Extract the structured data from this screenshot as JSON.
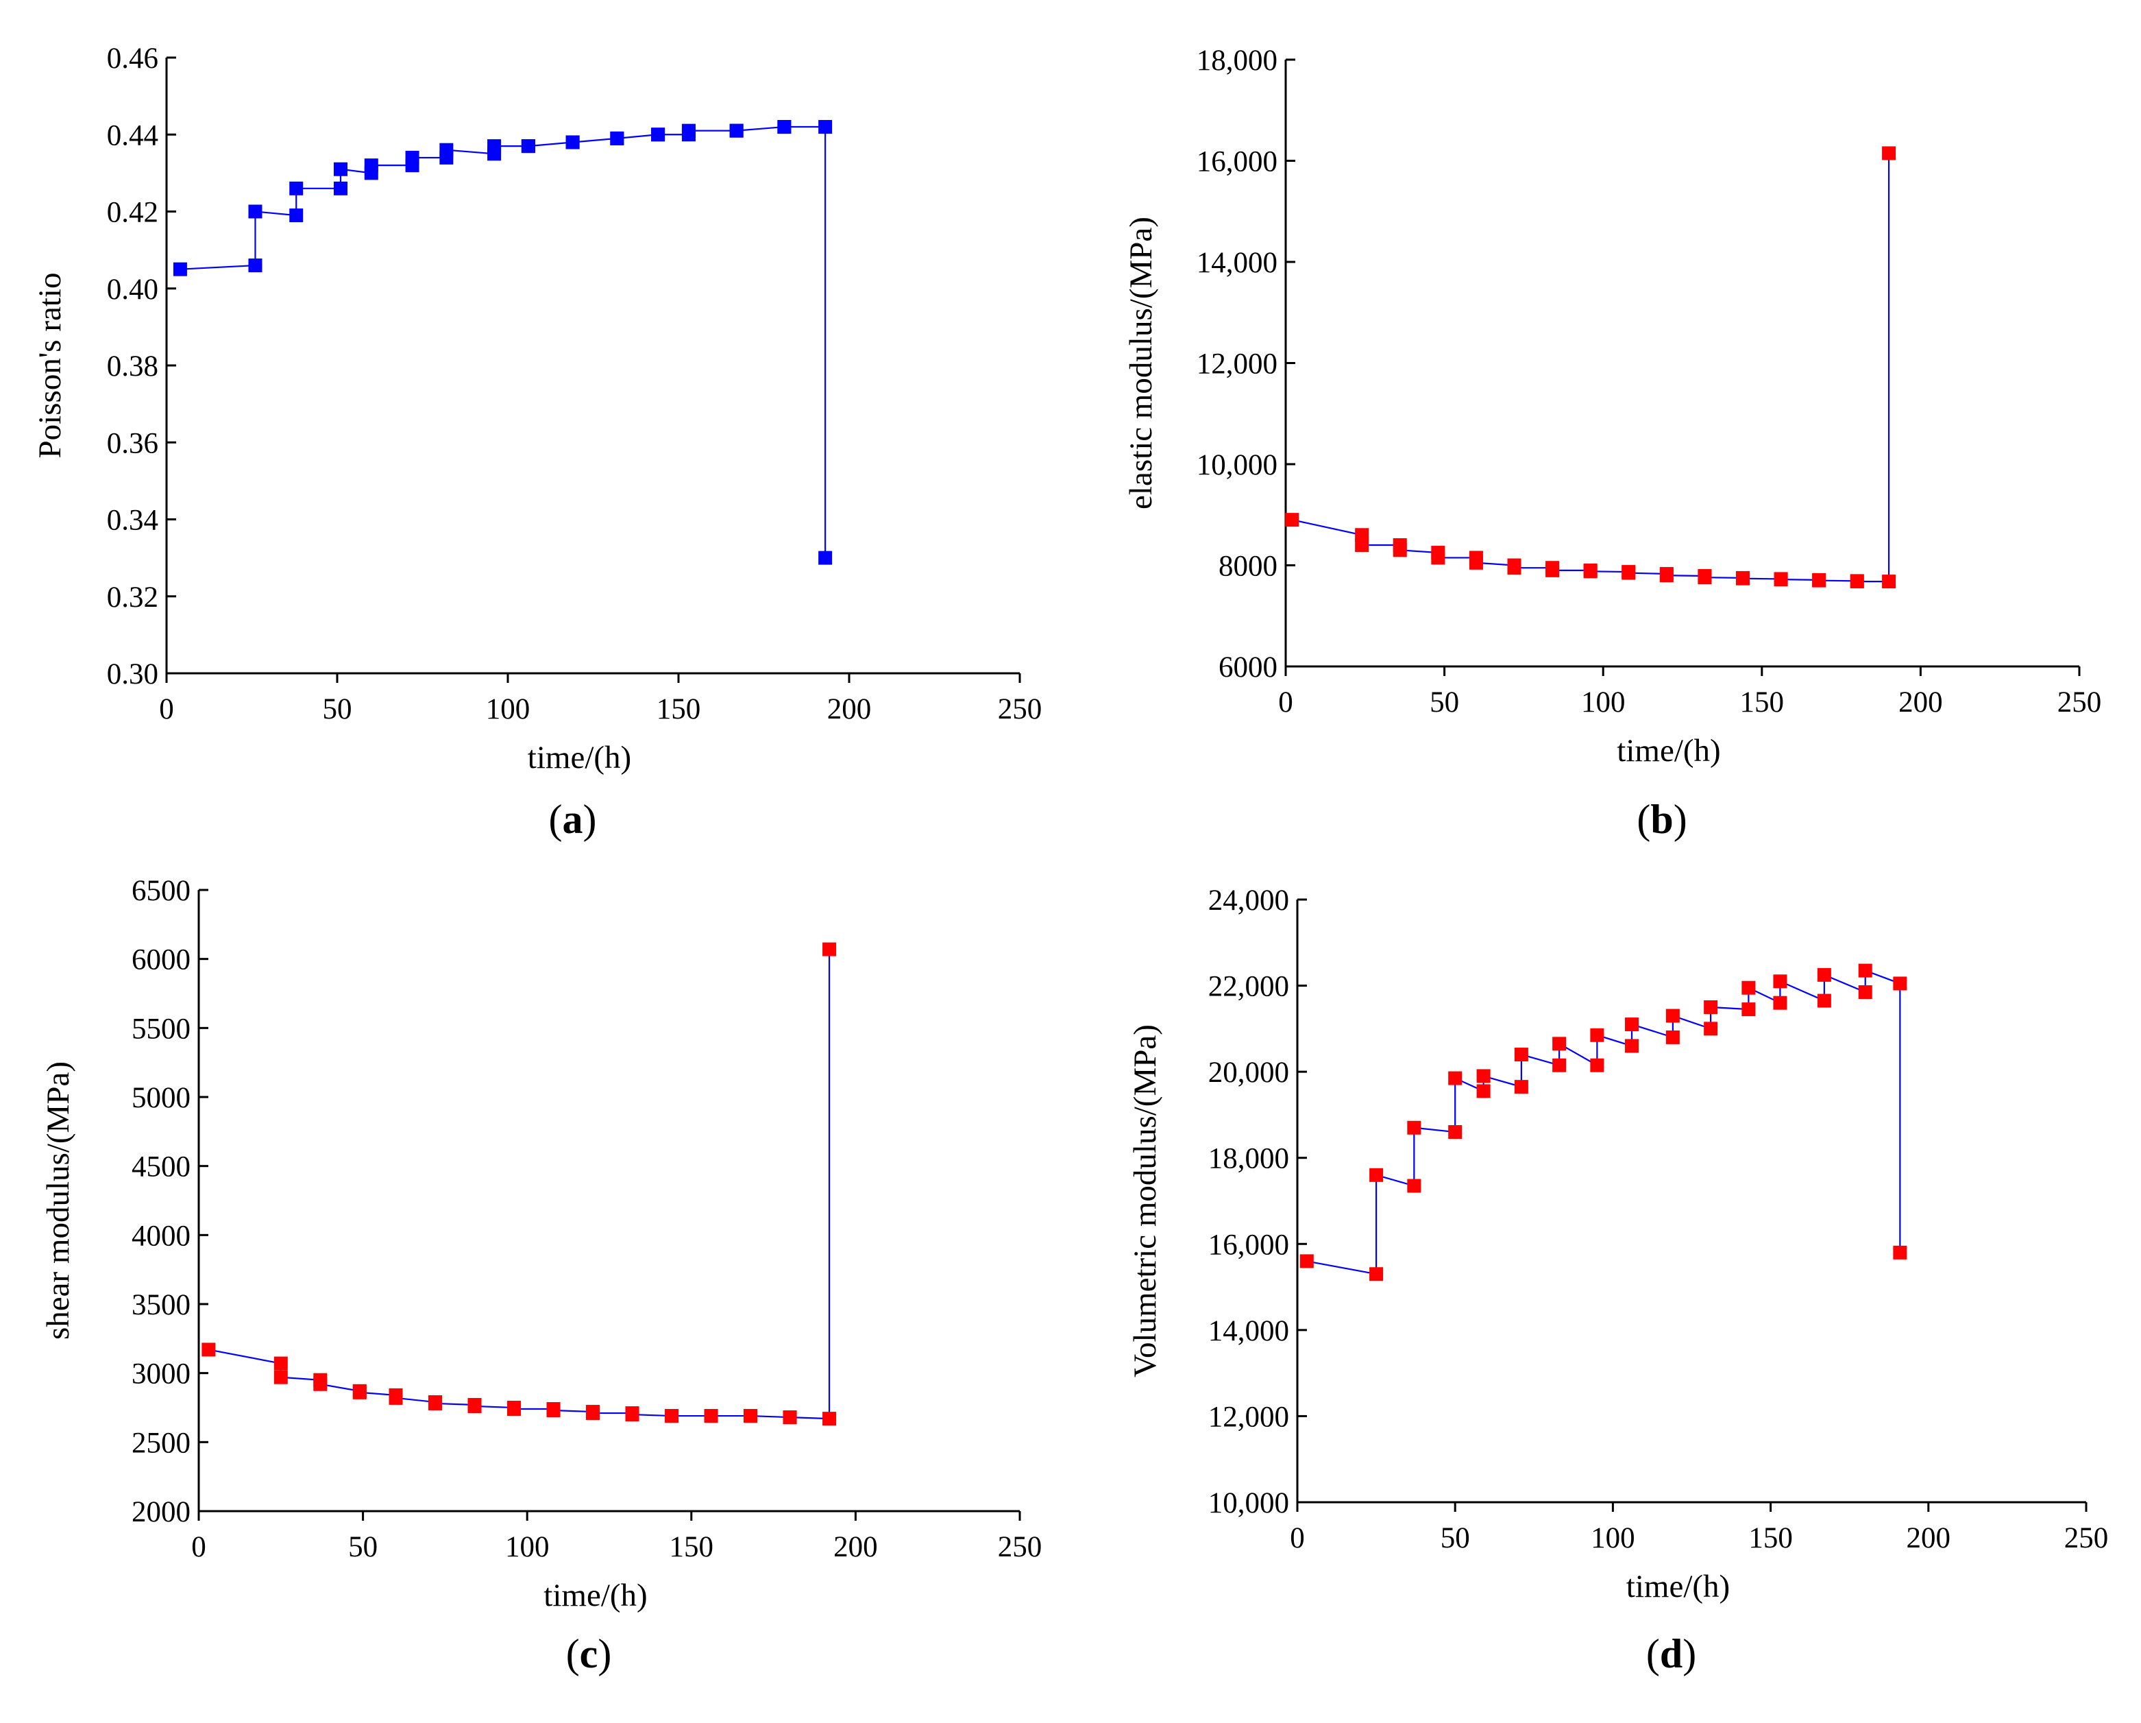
{
  "chart_data": [
    {
      "type": "line",
      "panel": "a",
      "caption": {
        "open": "(",
        "letter": "a",
        "close": ")"
      },
      "title": "",
      "xlabel": "time/(h)",
      "ylabel": "Poisson's ratio",
      "xlim": [
        0,
        250
      ],
      "ylim": [
        0.3,
        0.46
      ],
      "xticks": [
        0,
        50,
        100,
        150,
        200,
        250
      ],
      "xtick_labels": [
        "0",
        "50",
        "100",
        "150",
        "200",
        "250"
      ],
      "yticks": [
        0.3,
        0.32,
        0.34,
        0.36,
        0.38,
        0.4,
        0.42,
        0.44,
        0.46
      ],
      "ytick_labels": [
        "0.30",
        "0.32",
        "0.34",
        "0.36",
        "0.38",
        "0.40",
        "0.42",
        "0.44",
        "0.46"
      ],
      "colors": {
        "line": "#0000ff",
        "marker": "#0000ff"
      },
      "series": [
        {
          "name": "Poisson's ratio",
          "x": [
            4,
            26,
            26,
            38,
            38,
            51,
            51,
            60,
            60,
            72,
            72,
            82,
            82,
            96,
            96,
            106,
            106,
            119,
            119,
            132,
            132,
            144,
            144,
            153,
            153,
            167,
            167,
            181,
            181,
            193,
            193
          ],
          "y": [
            0.405,
            0.406,
            0.42,
            0.419,
            0.426,
            0.426,
            0.431,
            0.43,
            0.432,
            0.432,
            0.434,
            0.434,
            0.436,
            0.435,
            0.437,
            0.437,
            0.437,
            0.438,
            0.438,
            0.439,
            0.439,
            0.44,
            0.44,
            0.44,
            0.441,
            0.441,
            0.441,
            0.442,
            0.442,
            0.442,
            0.33
          ]
        }
      ]
    },
    {
      "type": "line",
      "panel": "b",
      "caption": {
        "open": "(",
        "letter": "b",
        "close": ")"
      },
      "title": "",
      "xlabel": "time/(h)",
      "ylabel": "elastic modulus/(MPa)",
      "xlim": [
        0,
        250
      ],
      "ylim": [
        6000,
        18000
      ],
      "xticks": [
        0,
        50,
        100,
        150,
        200,
        250
      ],
      "xtick_labels": [
        "0",
        "50",
        "100",
        "150",
        "200",
        "250"
      ],
      "yticks": [
        6000,
        8000,
        10000,
        12000,
        14000,
        16000,
        18000
      ],
      "ytick_labels": [
        "6000",
        "8000",
        "10,000",
        "12,000",
        "14,000",
        "16,000",
        "18,000"
      ],
      "colors": {
        "line": "#0000ff",
        "marker": "#ff0000"
      },
      "series": [
        {
          "name": "elastic modulus",
          "x": [
            2,
            24,
            24,
            36,
            36,
            48,
            48,
            60,
            60,
            72,
            72,
            84,
            84,
            96,
            96,
            108,
            108,
            120,
            120,
            132,
            132,
            144,
            144,
            156,
            156,
            168,
            168,
            180,
            180,
            190,
            190
          ],
          "y": [
            8900,
            8600,
            8400,
            8400,
            8300,
            8250,
            8150,
            8150,
            8050,
            8000,
            7950,
            7950,
            7900,
            7900,
            7880,
            7870,
            7850,
            7830,
            7800,
            7790,
            7760,
            7750,
            7740,
            7730,
            7720,
            7710,
            7700,
            7690,
            7680,
            7680,
            16150
          ]
        }
      ]
    },
    {
      "type": "line",
      "panel": "c",
      "caption": {
        "open": "(",
        "letter": "c",
        "close": ")"
      },
      "title": "",
      "xlabel": "time/(h)",
      "ylabel": "shear modulus/(MPa)",
      "xlim": [
        0,
        250
      ],
      "ylim": [
        2000,
        6500
      ],
      "xticks": [
        0,
        50,
        100,
        150,
        200,
        250
      ],
      "xtick_labels": [
        "0",
        "50",
        "100",
        "150",
        "200",
        "250"
      ],
      "yticks": [
        2000,
        2500,
        3000,
        3500,
        4000,
        4500,
        5000,
        5500,
        6000,
        6500
      ],
      "ytick_labels": [
        "2000",
        "2500",
        "3000",
        "3500",
        "4000",
        "4500",
        "5000",
        "5500",
        "6000",
        "6500"
      ],
      "colors": {
        "line": "#0000ff",
        "marker": "#ff0000"
      },
      "series": [
        {
          "name": "shear modulus",
          "x": [
            3,
            25,
            25,
            37,
            37,
            49,
            49,
            60,
            60,
            72,
            72,
            84,
            84,
            96,
            96,
            108,
            108,
            120,
            120,
            132,
            132,
            144,
            144,
            156,
            156,
            168,
            168,
            180,
            180,
            192,
            192
          ],
          "y": [
            3170,
            3070,
            2970,
            2950,
            2920,
            2870,
            2860,
            2840,
            2820,
            2790,
            2780,
            2770,
            2760,
            2750,
            2740,
            2740,
            2730,
            2720,
            2710,
            2710,
            2700,
            2690,
            2690,
            2690,
            2690,
            2690,
            2690,
            2680,
            2680,
            2670,
            6070
          ]
        }
      ]
    },
    {
      "type": "line",
      "panel": "d",
      "caption": {
        "open": "(",
        "letter": "d",
        "close": ")"
      },
      "title": "",
      "xlabel": "time/(h)",
      "ylabel": "Volumetric modulus/(MPa)",
      "xlim": [
        0,
        250
      ],
      "ylim": [
        10000,
        24000
      ],
      "xticks": [
        0,
        50,
        100,
        150,
        200,
        250
      ],
      "xtick_labels": [
        "0",
        "50",
        "100",
        "150",
        "200",
        "250"
      ],
      "yticks": [
        10000,
        12000,
        14000,
        16000,
        18000,
        20000,
        22000,
        24000
      ],
      "ytick_labels": [
        "10,000",
        "12,000",
        "14,000",
        "16,000",
        "18,000",
        "20,000",
        "22,000",
        "24,000"
      ],
      "colors": {
        "line": "#0000ff",
        "marker": "#ff0000"
      },
      "series": [
        {
          "name": "Volumetric modulus",
          "x": [
            3,
            25,
            25,
            37,
            37,
            50,
            50,
            59,
            59,
            71,
            71,
            83,
            83,
            95,
            95,
            106,
            106,
            119,
            119,
            131,
            131,
            143,
            143,
            153,
            153,
            167,
            167,
            180,
            180,
            191,
            191
          ],
          "y": [
            15600,
            15300,
            17600,
            17350,
            18700,
            18600,
            19850,
            19550,
            19900,
            19650,
            20400,
            20150,
            20650,
            20150,
            20850,
            20600,
            21100,
            20800,
            21300,
            21000,
            21500,
            21450,
            21950,
            21600,
            22100,
            21650,
            22250,
            21850,
            22350,
            22050,
            15800
          ]
        }
      ]
    }
  ]
}
